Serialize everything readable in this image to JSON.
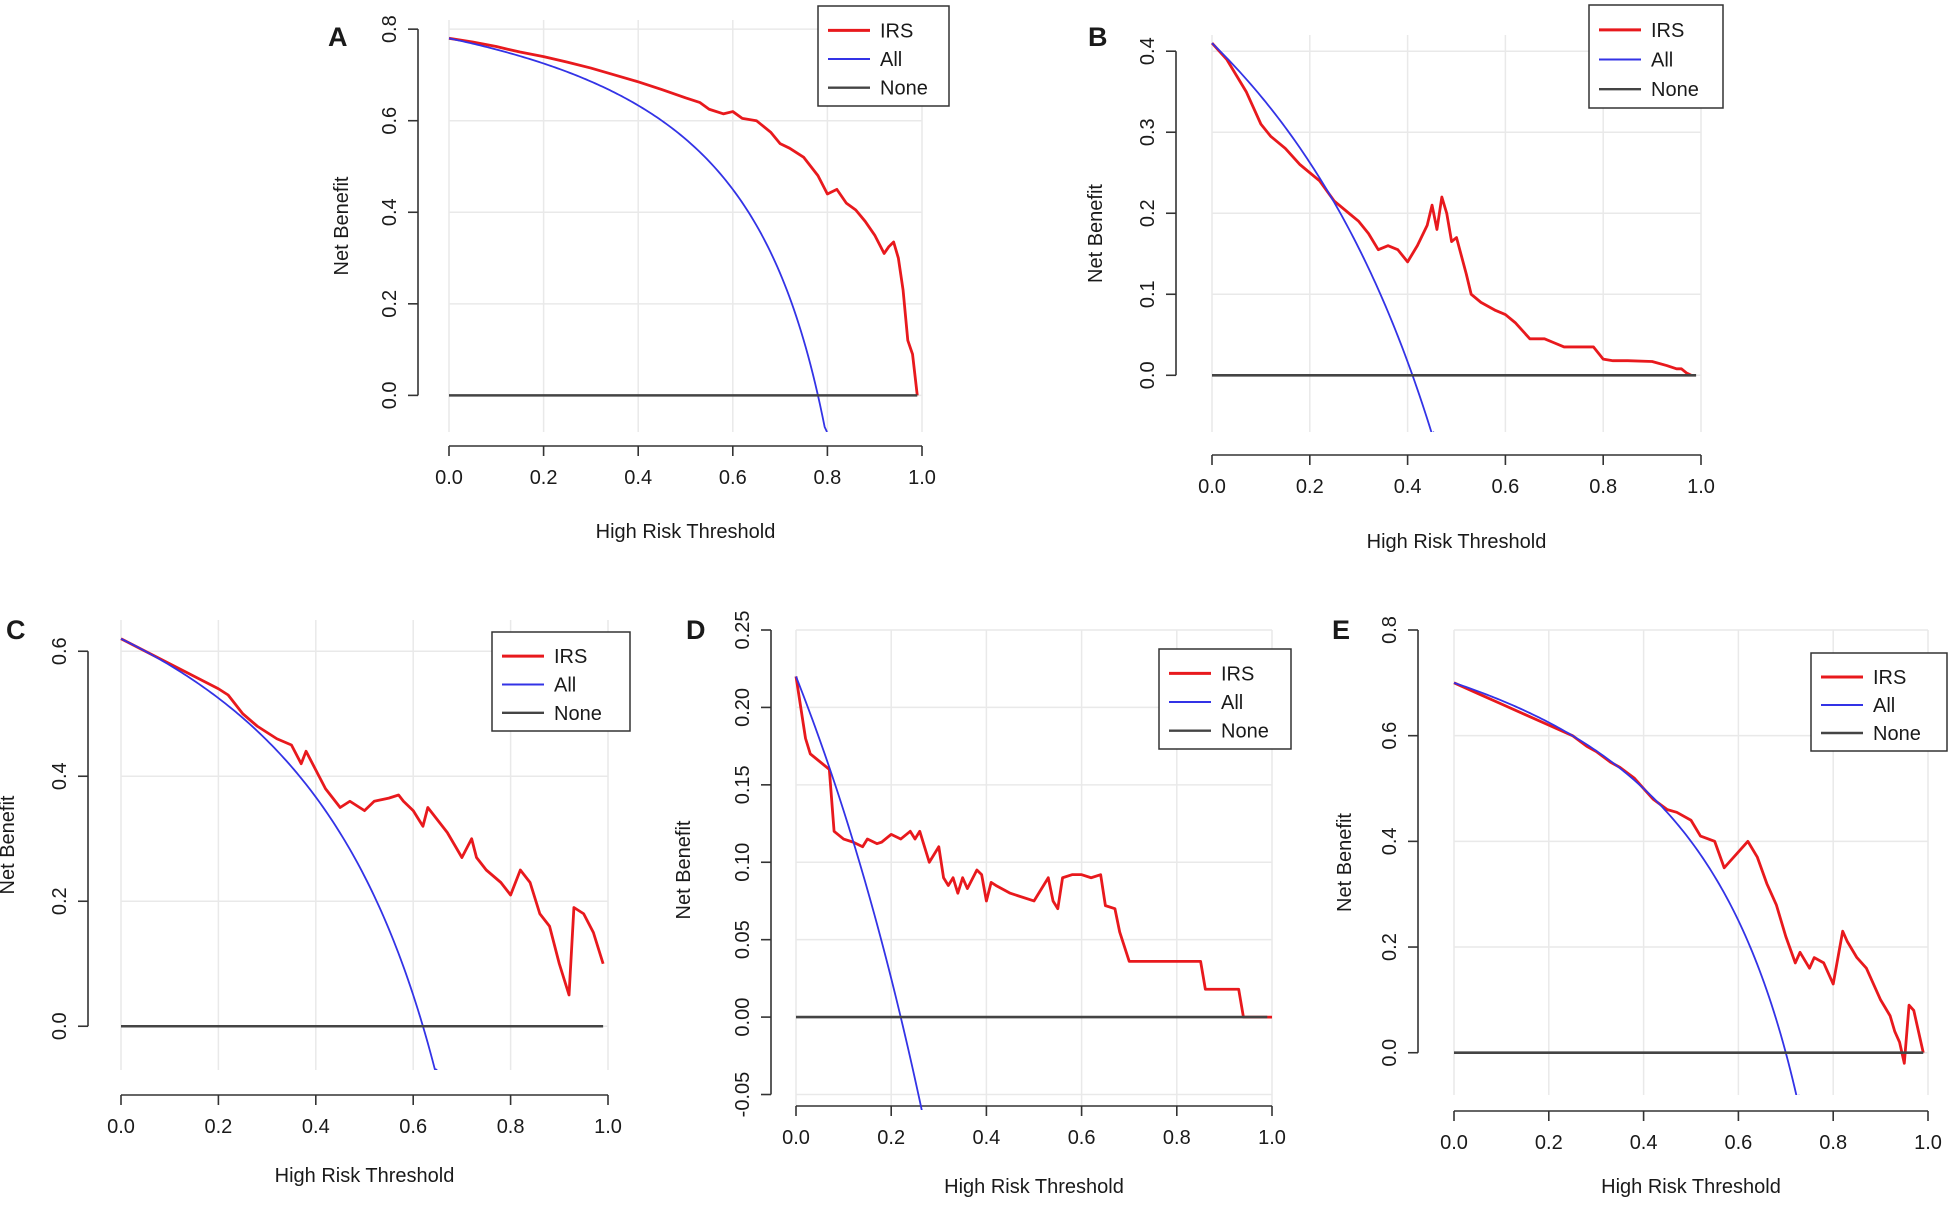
{
  "chart_data": [
    {
      "panel": "A",
      "type": "line",
      "xlabel": "High Risk Threshold",
      "ylabel": "Net Benefit",
      "xlim": [
        0,
        1
      ],
      "ylim": [
        -0.08,
        0.82
      ],
      "xticks": [
        0,
        0.2,
        0.4,
        0.6,
        0.8,
        1.0
      ],
      "xtick_labels": [
        "0.0",
        "0.2",
        "0.4",
        "0.6",
        "0.8",
        "1.0"
      ],
      "yticks": [
        0,
        0.2,
        0.4,
        0.6,
        0.8
      ],
      "ytick_labels": [
        "0.0",
        "0.2",
        "0.4",
        "0.6",
        "0.8"
      ],
      "legend": [
        "IRS",
        "All",
        "None"
      ],
      "legend_position": "top-right",
      "prevalence": 0.78,
      "series": [
        {
          "name": "IRS",
          "color": "#e8191d",
          "x": [
            0.0,
            0.05,
            0.1,
            0.15,
            0.2,
            0.25,
            0.3,
            0.35,
            0.4,
            0.45,
            0.5,
            0.53,
            0.55,
            0.58,
            0.6,
            0.62,
            0.65,
            0.68,
            0.7,
            0.72,
            0.75,
            0.78,
            0.8,
            0.82,
            0.84,
            0.86,
            0.88,
            0.9,
            0.92,
            0.93,
            0.94,
            0.95,
            0.96,
            0.97,
            0.98,
            0.99
          ],
          "y": [
            0.78,
            0.772,
            0.762,
            0.75,
            0.74,
            0.728,
            0.715,
            0.7,
            0.685,
            0.668,
            0.65,
            0.64,
            0.625,
            0.615,
            0.62,
            0.605,
            0.6,
            0.575,
            0.55,
            0.54,
            0.52,
            0.48,
            0.44,
            0.45,
            0.42,
            0.405,
            0.38,
            0.35,
            0.31,
            0.325,
            0.335,
            0.3,
            0.23,
            0.12,
            0.09,
            0.0
          ]
        },
        {
          "name": "All",
          "color": "#3333e6",
          "formula": "prevalence - (1 - prevalence) * t / (1 - t)"
        },
        {
          "name": "None",
          "color": "#444444",
          "y_const": 0
        }
      ]
    },
    {
      "panel": "B",
      "type": "line",
      "xlabel": "High Risk Threshold",
      "ylabel": "Net Benefit",
      "xlim": [
        0,
        1
      ],
      "ylim": [
        -0.07,
        0.42
      ],
      "xticks": [
        0,
        0.2,
        0.4,
        0.6,
        0.8,
        1.0
      ],
      "xtick_labels": [
        "0.0",
        "0.2",
        "0.4",
        "0.6",
        "0.8",
        "1.0"
      ],
      "yticks": [
        0,
        0.1,
        0.2,
        0.3,
        0.4
      ],
      "ytick_labels": [
        "0.0",
        "0.1",
        "0.2",
        "0.3",
        "0.4"
      ],
      "legend": [
        "IRS",
        "All",
        "None"
      ],
      "legend_position": "top-right",
      "prevalence": 0.41,
      "series": [
        {
          "name": "IRS",
          "color": "#e8191d",
          "x": [
            0.0,
            0.03,
            0.05,
            0.07,
            0.1,
            0.12,
            0.15,
            0.18,
            0.2,
            0.22,
            0.25,
            0.28,
            0.3,
            0.32,
            0.34,
            0.36,
            0.38,
            0.4,
            0.41,
            0.42,
            0.44,
            0.45,
            0.46,
            0.47,
            0.48,
            0.49,
            0.5,
            0.52,
            0.53,
            0.55,
            0.58,
            0.6,
            0.62,
            0.65,
            0.68,
            0.7,
            0.72,
            0.75,
            0.78,
            0.8,
            0.82,
            0.85,
            0.9,
            0.93,
            0.95,
            0.96,
            0.97,
            0.98
          ],
          "y": [
            0.41,
            0.39,
            0.37,
            0.35,
            0.31,
            0.295,
            0.28,
            0.26,
            0.25,
            0.24,
            0.215,
            0.2,
            0.19,
            0.175,
            0.155,
            0.16,
            0.155,
            0.14,
            0.15,
            0.16,
            0.185,
            0.21,
            0.18,
            0.22,
            0.2,
            0.165,
            0.17,
            0.125,
            0.1,
            0.09,
            0.08,
            0.075,
            0.065,
            0.045,
            0.045,
            0.04,
            0.035,
            0.035,
            0.035,
            0.02,
            0.018,
            0.018,
            0.017,
            0.012,
            0.008,
            0.008,
            0.003,
            0.0
          ]
        },
        {
          "name": "All",
          "color": "#3333e6",
          "formula": "prevalence - (1 - prevalence) * t / (1 - t)"
        },
        {
          "name": "None",
          "color": "#444444",
          "y_const": 0
        }
      ]
    },
    {
      "panel": "C",
      "type": "line",
      "xlabel": "High Risk Threshold",
      "ylabel": "Net Benefit",
      "xlim": [
        0,
        1
      ],
      "ylim": [
        -0.07,
        0.65
      ],
      "xticks": [
        0,
        0.2,
        0.4,
        0.6,
        0.8,
        1.0
      ],
      "xtick_labels": [
        "0.0",
        "0.2",
        "0.4",
        "0.6",
        "0.8",
        "1.0"
      ],
      "yticks": [
        0,
        0.2,
        0.4,
        0.6
      ],
      "ytick_labels": [
        "0.0",
        "0.2",
        "0.4",
        "0.6"
      ],
      "legend": [
        "IRS",
        "All",
        "None"
      ],
      "legend_position": "top-right",
      "prevalence": 0.62,
      "series": [
        {
          "name": "IRS",
          "color": "#e8191d",
          "x": [
            0.0,
            0.05,
            0.1,
            0.15,
            0.2,
            0.22,
            0.25,
            0.28,
            0.3,
            0.32,
            0.35,
            0.37,
            0.38,
            0.4,
            0.42,
            0.45,
            0.47,
            0.5,
            0.52,
            0.55,
            0.57,
            0.58,
            0.6,
            0.62,
            0.63,
            0.65,
            0.67,
            0.7,
            0.72,
            0.73,
            0.75,
            0.78,
            0.8,
            0.82,
            0.84,
            0.86,
            0.88,
            0.9,
            0.92,
            0.93,
            0.95,
            0.97,
            0.99
          ],
          "y": [
            0.62,
            0.6,
            0.58,
            0.56,
            0.54,
            0.53,
            0.5,
            0.48,
            0.47,
            0.46,
            0.45,
            0.42,
            0.44,
            0.41,
            0.38,
            0.35,
            0.36,
            0.345,
            0.36,
            0.365,
            0.37,
            0.36,
            0.345,
            0.32,
            0.35,
            0.33,
            0.31,
            0.27,
            0.3,
            0.27,
            0.25,
            0.23,
            0.21,
            0.25,
            0.23,
            0.18,
            0.16,
            0.1,
            0.05,
            0.19,
            0.18,
            0.15,
            0.1
          ]
        },
        {
          "name": "All",
          "color": "#3333e6",
          "formula": "prevalence - (1 - prevalence) * t / (1 - t)"
        },
        {
          "name": "None",
          "color": "#444444",
          "y_const": 0
        }
      ]
    },
    {
      "panel": "D",
      "type": "line",
      "xlabel": "High Risk Threshold",
      "ylabel": "Net Benefit",
      "xlim": [
        0,
        1
      ],
      "ylim": [
        -0.06,
        0.25
      ],
      "xticks": [
        0,
        0.2,
        0.4,
        0.6,
        0.8,
        1.0
      ],
      "xtick_labels": [
        "0.0",
        "0.2",
        "0.4",
        "0.6",
        "0.8",
        "1.0"
      ],
      "yticks": [
        -0.05,
        0,
        0.05,
        0.1,
        0.15,
        0.2,
        0.25
      ],
      "ytick_labels": [
        "-0.05",
        "0.00",
        "0.05",
        "0.10",
        "0.15",
        "0.20",
        "0.25"
      ],
      "legend": [
        "IRS",
        "All",
        "None"
      ],
      "legend_position": "top-right",
      "prevalence": 0.22,
      "series": [
        {
          "name": "IRS",
          "color": "#e8191d",
          "x": [
            0.0,
            0.02,
            0.03,
            0.05,
            0.07,
            0.08,
            0.1,
            0.12,
            0.14,
            0.15,
            0.17,
            0.18,
            0.2,
            0.22,
            0.24,
            0.25,
            0.26,
            0.28,
            0.3,
            0.31,
            0.32,
            0.33,
            0.34,
            0.35,
            0.36,
            0.38,
            0.39,
            0.4,
            0.41,
            0.42,
            0.45,
            0.5,
            0.53,
            0.54,
            0.55,
            0.56,
            0.58,
            0.6,
            0.62,
            0.64,
            0.65,
            0.67,
            0.68,
            0.7,
            0.75,
            0.8,
            0.85,
            0.86,
            0.88,
            0.9,
            0.93,
            0.94,
            1.0
          ],
          "y": [
            0.22,
            0.18,
            0.17,
            0.165,
            0.16,
            0.12,
            0.115,
            0.113,
            0.11,
            0.115,
            0.112,
            0.113,
            0.118,
            0.115,
            0.12,
            0.115,
            0.12,
            0.1,
            0.11,
            0.09,
            0.085,
            0.09,
            0.08,
            0.09,
            0.083,
            0.095,
            0.092,
            0.075,
            0.087,
            0.085,
            0.08,
            0.075,
            0.09,
            0.075,
            0.07,
            0.09,
            0.092,
            0.092,
            0.09,
            0.092,
            0.072,
            0.07,
            0.055,
            0.036,
            0.036,
            0.036,
            0.036,
            0.018,
            0.018,
            0.018,
            0.018,
            0.0,
            0.0
          ]
        },
        {
          "name": "All",
          "color": "#3333e6",
          "formula": "prevalence - (1 - prevalence) * t / (1 - t)"
        },
        {
          "name": "None",
          "color": "#444444",
          "y_const": 0
        }
      ]
    },
    {
      "panel": "E",
      "type": "line",
      "xlabel": "High Risk Threshold",
      "ylabel": "Net Benefit",
      "xlim": [
        0,
        1
      ],
      "ylim": [
        -0.08,
        0.8
      ],
      "xticks": [
        0,
        0.2,
        0.4,
        0.6,
        0.8,
        1.0
      ],
      "xtick_labels": [
        "0.0",
        "0.2",
        "0.4",
        "0.6",
        "0.8",
        "1.0"
      ],
      "yticks": [
        0,
        0.2,
        0.4,
        0.6,
        0.8
      ],
      "ytick_labels": [
        "0.0",
        "0.2",
        "0.4",
        "0.6",
        "0.8"
      ],
      "legend": [
        "IRS",
        "All",
        "None"
      ],
      "legend_position": "top-right",
      "prevalence": 0.7,
      "series": [
        {
          "name": "IRS",
          "color": "#e8191d",
          "x": [
            0.0,
            0.05,
            0.1,
            0.15,
            0.2,
            0.25,
            0.28,
            0.3,
            0.33,
            0.35,
            0.38,
            0.4,
            0.42,
            0.45,
            0.47,
            0.5,
            0.52,
            0.55,
            0.57,
            0.58,
            0.6,
            0.62,
            0.64,
            0.66,
            0.68,
            0.7,
            0.72,
            0.73,
            0.75,
            0.76,
            0.78,
            0.8,
            0.81,
            0.82,
            0.83,
            0.85,
            0.87,
            0.9,
            0.92,
            0.93,
            0.94,
            0.95,
            0.96,
            0.97,
            0.98,
            0.99
          ],
          "y": [
            0.7,
            0.68,
            0.66,
            0.64,
            0.62,
            0.6,
            0.58,
            0.57,
            0.55,
            0.54,
            0.52,
            0.5,
            0.48,
            0.46,
            0.455,
            0.44,
            0.41,
            0.4,
            0.35,
            0.36,
            0.38,
            0.4,
            0.37,
            0.32,
            0.28,
            0.22,
            0.17,
            0.19,
            0.16,
            0.18,
            0.17,
            0.13,
            0.18,
            0.23,
            0.21,
            0.18,
            0.16,
            0.1,
            0.07,
            0.04,
            0.02,
            -0.02,
            0.09,
            0.08,
            0.04,
            0.0
          ]
        },
        {
          "name": "All",
          "color": "#3333e6",
          "formula": "prevalence - (1 - prevalence) * t / (1 - t)"
        },
        {
          "name": "None",
          "color": "#444444",
          "y_const": 0
        }
      ]
    }
  ]
}
